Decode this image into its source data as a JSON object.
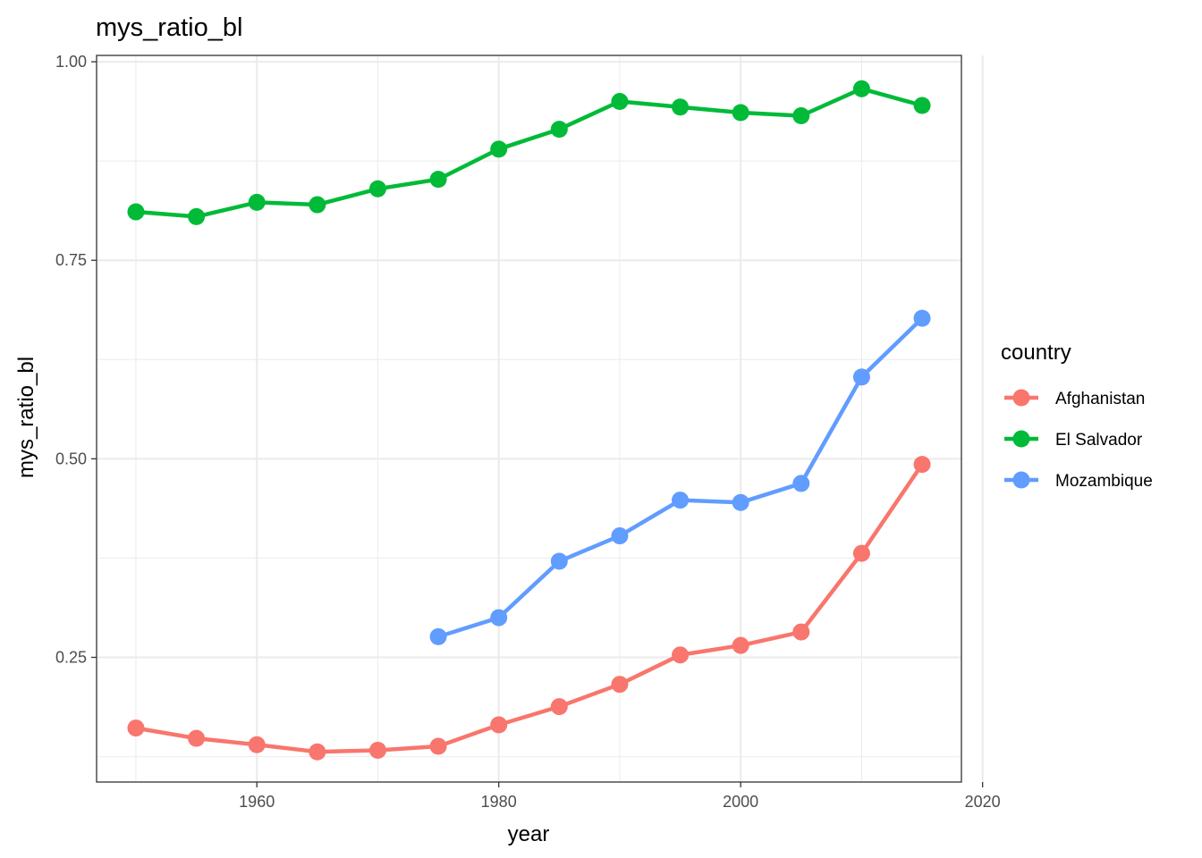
{
  "chart_data": {
    "type": "line",
    "title": "mys_ratio_bl",
    "xlabel": "year",
    "ylabel": "mys_ratio_bl",
    "xlim": [
      1946.75,
      2018.25
    ],
    "ylim": [
      0.093,
      1.008
    ],
    "x_ticks": [
      1960,
      1980,
      2000,
      2020
    ],
    "x_tick_labels": [
      "1960",
      "1980",
      "2000",
      "2020"
    ],
    "y_ticks": [
      0.25,
      0.5,
      0.75,
      1.0
    ],
    "y_tick_labels": [
      "0.25",
      "0.50",
      "0.75",
      "1.00"
    ],
    "grid": true,
    "legend": {
      "title": "country",
      "position": "right"
    },
    "series": [
      {
        "name": "Afghanistan",
        "color": "#F8766D",
        "x": [
          1950,
          1955,
          1960,
          1965,
          1970,
          1975,
          1980,
          1985,
          1990,
          1995,
          2000,
          2005,
          2010,
          2015
        ],
        "y": [
          0.161,
          0.148,
          0.14,
          0.131,
          0.133,
          0.138,
          0.165,
          0.188,
          0.216,
          0.253,
          0.265,
          0.282,
          0.381,
          0.493
        ]
      },
      {
        "name": "El Salvador",
        "color": "#00BA38",
        "x": [
          1950,
          1955,
          1960,
          1965,
          1970,
          1975,
          1980,
          1985,
          1990,
          1995,
          2000,
          2005,
          2010,
          2015
        ],
        "y": [
          0.811,
          0.805,
          0.823,
          0.82,
          0.84,
          0.852,
          0.89,
          0.915,
          0.95,
          0.943,
          0.936,
          0.932,
          0.966,
          0.945
        ]
      },
      {
        "name": "Mozambique",
        "color": "#619CFF",
        "x": [
          1975,
          1980,
          1985,
          1990,
          1995,
          2000,
          2005,
          2010,
          2015
        ],
        "y": [
          0.276,
          0.3,
          0.371,
          0.403,
          0.448,
          0.445,
          0.469,
          0.603,
          0.677
        ]
      }
    ]
  }
}
